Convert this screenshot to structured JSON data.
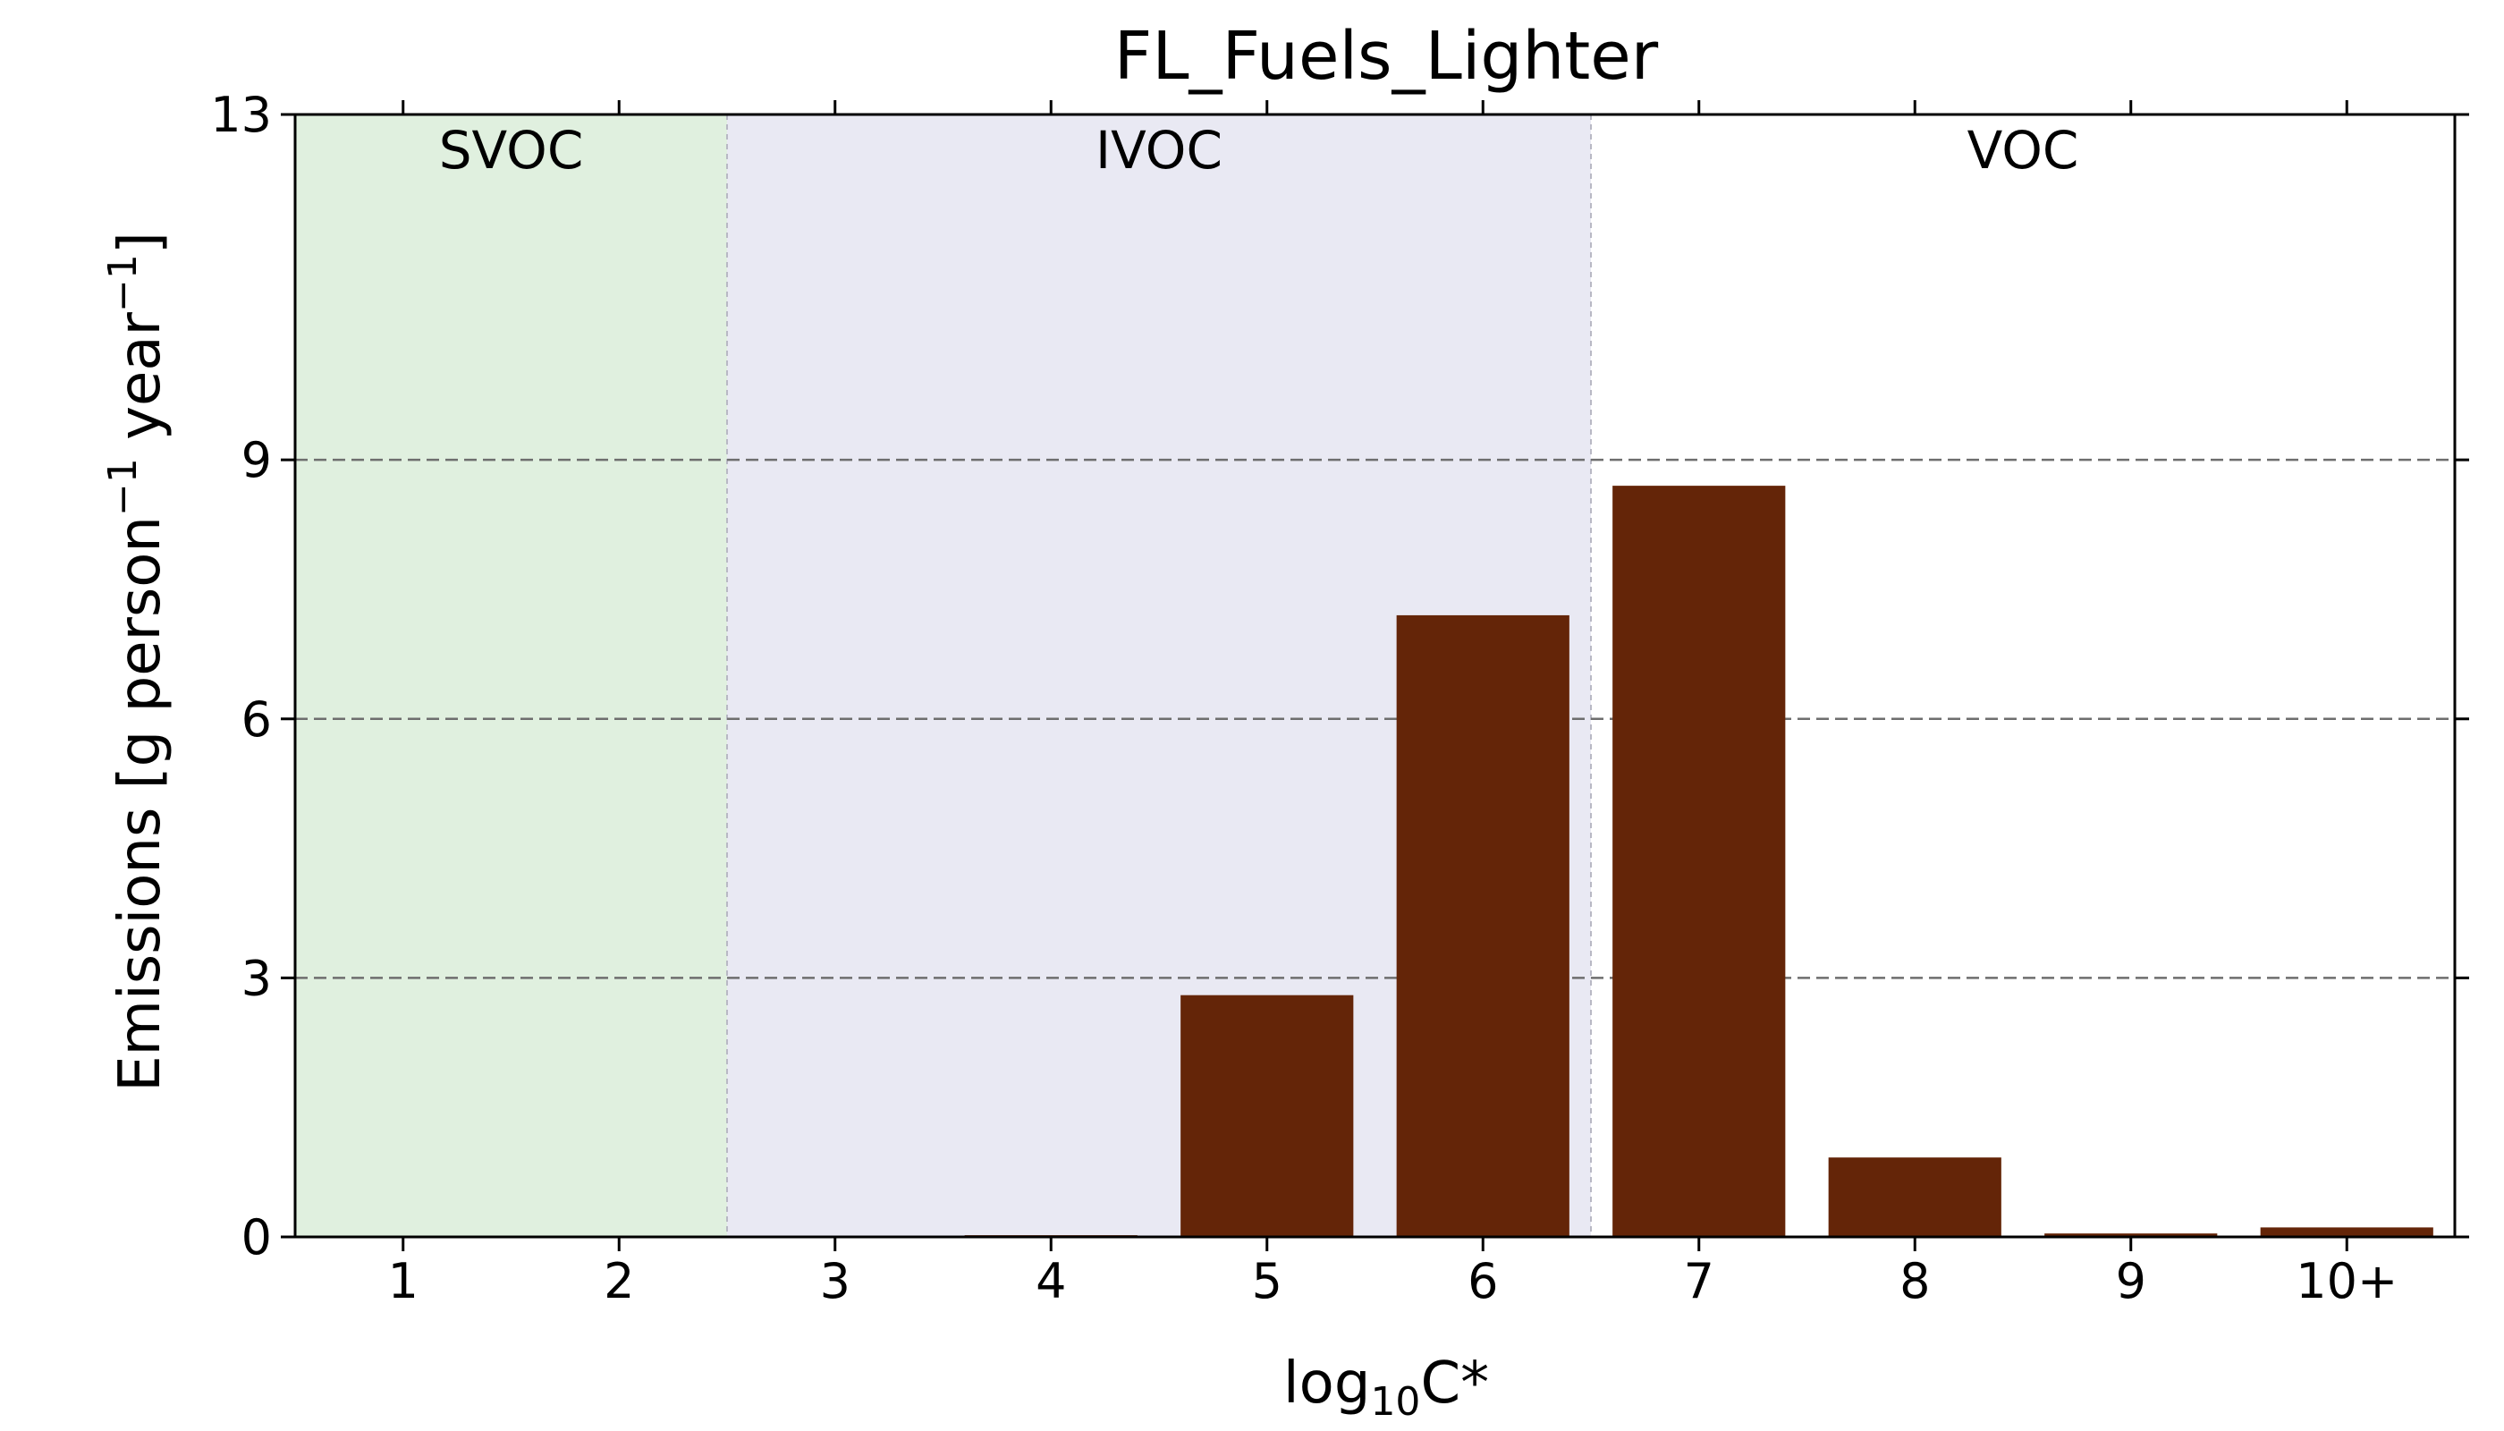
{
  "chart_data": {
    "type": "bar",
    "title": "FL_Fuels_Lighter",
    "xlabel": {
      "prefix": "log",
      "sub": "10",
      "suffix": "C*"
    },
    "ylabel": {
      "base": "Emissions [g person",
      "sup1": "−1",
      "mid": " year",
      "sup2": "−1",
      "end": "]"
    },
    "categories": [
      "1",
      "2",
      "3",
      "4",
      "5",
      "6",
      "7",
      "8",
      "9",
      "10+"
    ],
    "values": [
      0,
      0,
      0,
      0.02,
      2.8,
      7.2,
      8.7,
      0.92,
      0.04,
      0.11
    ],
    "bar_color": "#642508",
    "ylim": [
      0,
      13
    ],
    "yticks": [
      "0",
      "3",
      "6",
      "9",
      "13"
    ],
    "grid": "horizontal dashed",
    "regions": [
      {
        "label": "SVOC",
        "from_index": 0,
        "to_index": 1,
        "color": "#e0f0df"
      },
      {
        "label": "IVOC",
        "from_index": 2,
        "to_index": 5,
        "color": "#e9e9f3"
      },
      {
        "label": "VOC",
        "from_index": 6,
        "to_index": 9,
        "color": "#ffffff"
      }
    ]
  }
}
